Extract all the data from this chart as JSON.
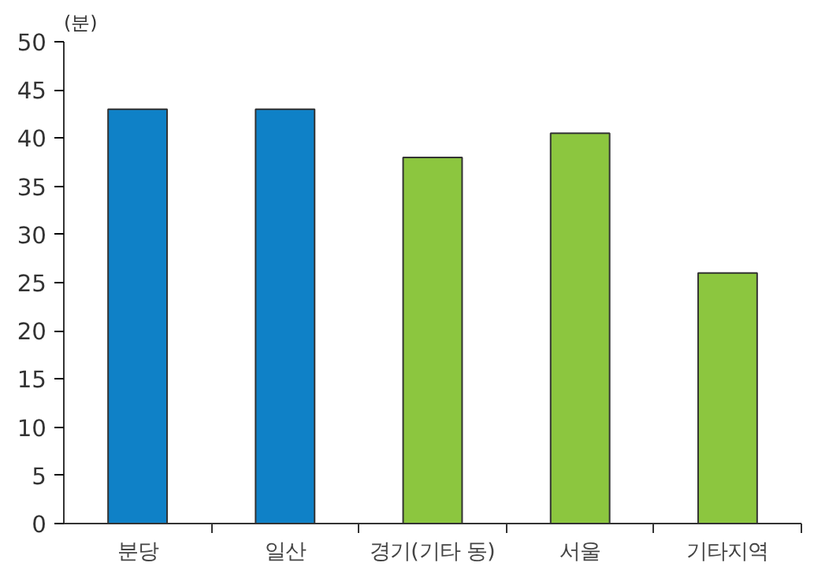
{
  "chart_data": {
    "type": "bar",
    "ylabel": "(분)",
    "categories": [
      "분당",
      "일산",
      "경기(기타 동)",
      "서울",
      "기타지역"
    ],
    "values": [
      43,
      43,
      38,
      40.5,
      26
    ],
    "colors": [
      "#0f81c7",
      "#0f81c7",
      "#8cc63f",
      "#8cc63f",
      "#8cc63f"
    ],
    "ylim": [
      0,
      50
    ],
    "yticks": [
      0,
      5,
      10,
      15,
      20,
      25,
      30,
      35,
      40,
      45,
      50
    ]
  }
}
